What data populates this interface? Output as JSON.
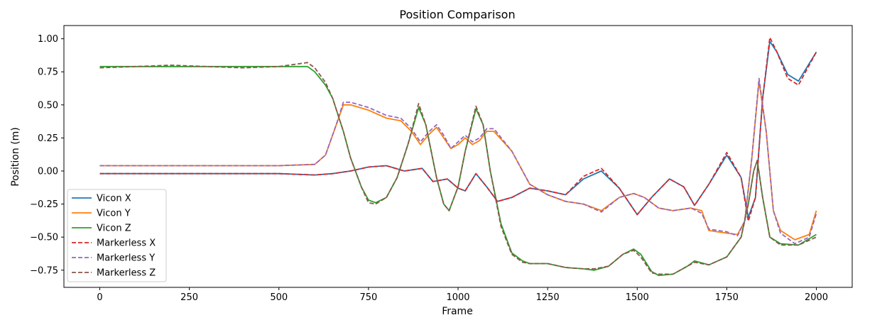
{
  "chart_data": {
    "type": "line",
    "title": "Position Comparison",
    "xlabel": "Frame",
    "ylabel": "Position (m)",
    "xlim": [
      -100,
      2100
    ],
    "ylim": [
      -0.88,
      1.1
    ],
    "xticks": [
      0,
      250,
      500,
      750,
      1000,
      1250,
      1500,
      1750,
      2000
    ],
    "yticks": [
      -0.75,
      -0.5,
      -0.25,
      0.0,
      0.25,
      0.5,
      0.75,
      1.0
    ],
    "xtick_labels": [
      "0",
      "250",
      "500",
      "750",
      "1000",
      "1250",
      "1500",
      "1750",
      "2000"
    ],
    "ytick_labels": [
      "−0.75",
      "−0.50",
      "−0.25",
      "0.00",
      "0.25",
      "0.50",
      "0.75",
      "1.00"
    ],
    "grid": false,
    "legend_position": "lower-left",
    "series": [
      {
        "name": "Vicon X",
        "color": "#1f77b4",
        "dash": "solid",
        "x": [
          0,
          100,
          200,
          300,
          400,
          500,
          600,
          650,
          700,
          750,
          800,
          850,
          900,
          930,
          970,
          1000,
          1020,
          1050,
          1080,
          1110,
          1150,
          1200,
          1250,
          1300,
          1350,
          1400,
          1450,
          1500,
          1540,
          1590,
          1630,
          1660,
          1700,
          1750,
          1790,
          1810,
          1830,
          1850,
          1870,
          1890,
          1920,
          1950,
          2000
        ],
        "values": [
          -0.02,
          -0.02,
          -0.02,
          -0.02,
          -0.02,
          -0.02,
          -0.03,
          -0.02,
          0.0,
          0.03,
          0.04,
          0.0,
          0.02,
          -0.08,
          -0.06,
          -0.13,
          -0.15,
          -0.02,
          -0.12,
          -0.23,
          -0.2,
          -0.13,
          -0.15,
          -0.18,
          -0.06,
          0.0,
          -0.13,
          -0.33,
          -0.2,
          -0.06,
          -0.12,
          -0.26,
          -0.1,
          0.12,
          -0.05,
          -0.35,
          -0.2,
          0.55,
          0.98,
          0.9,
          0.73,
          0.68,
          0.9
        ]
      },
      {
        "name": "Vicon Y",
        "color": "#ff7f0e",
        "dash": "solid",
        "x": [
          0,
          100,
          200,
          300,
          400,
          500,
          600,
          630,
          660,
          680,
          700,
          750,
          800,
          840,
          870,
          895,
          920,
          940,
          960,
          980,
          1000,
          1020,
          1040,
          1060,
          1080,
          1100,
          1150,
          1200,
          1250,
          1300,
          1350,
          1400,
          1450,
          1490,
          1520,
          1560,
          1600,
          1650,
          1680,
          1700,
          1750,
          1780,
          1800,
          1820,
          1840,
          1860,
          1880,
          1900,
          1940,
          1980,
          2000
        ],
        "values": [
          0.04,
          0.04,
          0.04,
          0.04,
          0.04,
          0.04,
          0.05,
          0.12,
          0.35,
          0.5,
          0.5,
          0.46,
          0.4,
          0.38,
          0.3,
          0.2,
          0.28,
          0.33,
          0.25,
          0.17,
          0.2,
          0.25,
          0.2,
          0.23,
          0.3,
          0.3,
          0.15,
          -0.1,
          -0.18,
          -0.23,
          -0.25,
          -0.3,
          -0.2,
          -0.17,
          -0.2,
          -0.28,
          -0.3,
          -0.28,
          -0.3,
          -0.45,
          -0.47,
          -0.48,
          -0.38,
          0.1,
          0.68,
          0.3,
          -0.3,
          -0.45,
          -0.52,
          -0.48,
          -0.3
        ]
      },
      {
        "name": "Vicon Z",
        "color": "#2ca02c",
        "dash": "solid",
        "x": [
          0,
          100,
          200,
          300,
          400,
          500,
          580,
          600,
          630,
          650,
          680,
          700,
          730,
          750,
          770,
          800,
          830,
          860,
          890,
          910,
          940,
          960,
          975,
          1000,
          1020,
          1050,
          1070,
          1090,
          1120,
          1150,
          1180,
          1200,
          1250,
          1300,
          1350,
          1380,
          1420,
          1460,
          1490,
          1510,
          1540,
          1560,
          1600,
          1640,
          1660,
          1700,
          1750,
          1790,
          1810,
          1825,
          1835,
          1850,
          1870,
          1900,
          1950,
          2000
        ],
        "values": [
          0.79,
          0.79,
          0.79,
          0.79,
          0.79,
          0.79,
          0.79,
          0.75,
          0.65,
          0.55,
          0.3,
          0.1,
          -0.12,
          -0.22,
          -0.24,
          -0.2,
          -0.05,
          0.2,
          0.48,
          0.35,
          -0.05,
          -0.25,
          -0.3,
          -0.12,
          0.15,
          0.47,
          0.35,
          0.0,
          -0.4,
          -0.62,
          -0.68,
          -0.7,
          -0.7,
          -0.73,
          -0.74,
          -0.75,
          -0.72,
          -0.63,
          -0.59,
          -0.63,
          -0.76,
          -0.79,
          -0.78,
          -0.72,
          -0.68,
          -0.71,
          -0.65,
          -0.5,
          -0.25,
          0.0,
          0.08,
          -0.2,
          -0.5,
          -0.55,
          -0.56,
          -0.48
        ]
      },
      {
        "name": "Markerless X",
        "color": "#d62728",
        "dash": "dashed",
        "x": [
          0,
          100,
          200,
          300,
          400,
          500,
          600,
          650,
          700,
          750,
          800,
          850,
          900,
          930,
          970,
          1000,
          1020,
          1050,
          1080,
          1110,
          1150,
          1200,
          1250,
          1300,
          1350,
          1400,
          1450,
          1500,
          1540,
          1590,
          1630,
          1660,
          1700,
          1750,
          1790,
          1810,
          1830,
          1850,
          1870,
          1890,
          1920,
          1950,
          2000
        ],
        "values": [
          -0.02,
          -0.02,
          -0.02,
          -0.02,
          -0.02,
          -0.02,
          -0.03,
          -0.02,
          0.0,
          0.03,
          0.04,
          0.0,
          0.02,
          -0.08,
          -0.06,
          -0.13,
          -0.15,
          -0.02,
          -0.12,
          -0.23,
          -0.2,
          -0.13,
          -0.15,
          -0.18,
          -0.04,
          0.02,
          -0.13,
          -0.33,
          -0.2,
          -0.06,
          -0.12,
          -0.26,
          -0.1,
          0.14,
          -0.05,
          -0.38,
          -0.2,
          0.55,
          1.01,
          0.9,
          0.7,
          0.65,
          0.9
        ]
      },
      {
        "name": "Markerless Y",
        "color": "#9467bd",
        "dash": "dashed",
        "x": [
          0,
          100,
          200,
          300,
          400,
          500,
          600,
          630,
          660,
          680,
          700,
          750,
          800,
          840,
          870,
          895,
          920,
          940,
          960,
          980,
          1000,
          1020,
          1040,
          1060,
          1080,
          1100,
          1150,
          1200,
          1250,
          1300,
          1350,
          1400,
          1450,
          1490,
          1520,
          1560,
          1600,
          1650,
          1680,
          1700,
          1750,
          1780,
          1800,
          1820,
          1840,
          1860,
          1880,
          1900,
          1940,
          1980,
          2000
        ],
        "values": [
          0.04,
          0.04,
          0.04,
          0.04,
          0.04,
          0.04,
          0.05,
          0.12,
          0.35,
          0.52,
          0.52,
          0.48,
          0.42,
          0.4,
          0.32,
          0.22,
          0.3,
          0.35,
          0.27,
          0.17,
          0.22,
          0.27,
          0.22,
          0.25,
          0.32,
          0.32,
          0.15,
          -0.1,
          -0.18,
          -0.23,
          -0.25,
          -0.31,
          -0.2,
          -0.17,
          -0.2,
          -0.28,
          -0.3,
          -0.28,
          -0.32,
          -0.44,
          -0.46,
          -0.49,
          -0.38,
          0.1,
          0.7,
          0.3,
          -0.3,
          -0.47,
          -0.55,
          -0.5,
          -0.32
        ]
      },
      {
        "name": "Markerless Z",
        "color": "#8c564b",
        "dash": "dashed",
        "x": [
          0,
          100,
          200,
          300,
          400,
          500,
          580,
          600,
          630,
          650,
          680,
          700,
          730,
          750,
          770,
          800,
          830,
          860,
          890,
          910,
          940,
          960,
          975,
          1000,
          1020,
          1050,
          1070,
          1090,
          1120,
          1150,
          1180,
          1200,
          1250,
          1300,
          1350,
          1380,
          1420,
          1460,
          1490,
          1510,
          1540,
          1560,
          1600,
          1640,
          1660,
          1700,
          1750,
          1790,
          1810,
          1825,
          1835,
          1850,
          1870,
          1900,
          1950,
          2000
        ],
        "values": [
          0.78,
          0.79,
          0.8,
          0.79,
          0.78,
          0.79,
          0.82,
          0.78,
          0.67,
          0.55,
          0.3,
          0.1,
          -0.12,
          -0.24,
          -0.25,
          -0.2,
          -0.05,
          0.2,
          0.51,
          0.35,
          -0.05,
          -0.25,
          -0.3,
          -0.12,
          0.15,
          0.49,
          0.35,
          0.0,
          -0.42,
          -0.63,
          -0.69,
          -0.7,
          -0.7,
          -0.73,
          -0.74,
          -0.74,
          -0.72,
          -0.63,
          -0.6,
          -0.65,
          -0.77,
          -0.78,
          -0.78,
          -0.72,
          -0.69,
          -0.71,
          -0.65,
          -0.5,
          -0.25,
          0.0,
          0.08,
          -0.2,
          -0.5,
          -0.56,
          -0.56,
          -0.5
        ]
      }
    ]
  }
}
